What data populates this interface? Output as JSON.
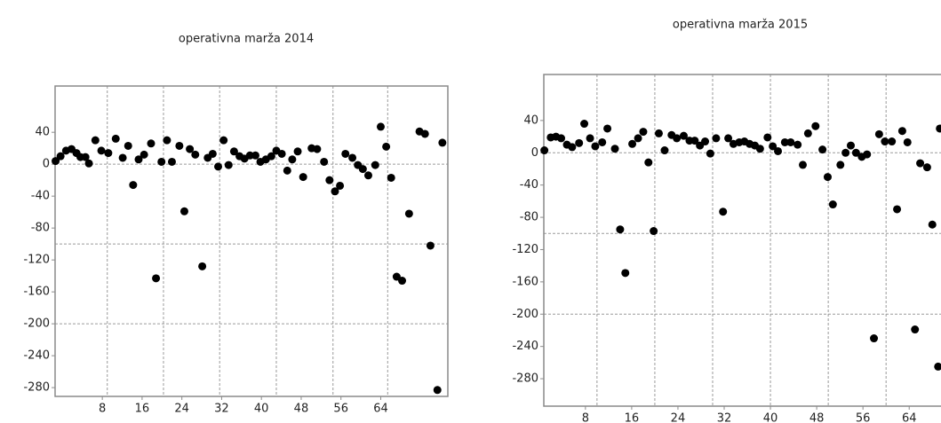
{
  "chart_data": [
    {
      "type": "scatter",
      "title": "operativna marža 2014",
      "color": "#000000",
      "xlim": [
        -1.5,
        77.5
      ],
      "ylim": [
        -291,
        98
      ],
      "xticks": [
        8,
        16,
        24,
        32,
        40,
        48,
        56,
        64
      ],
      "yticks": [
        40,
        0,
        -40,
        -80,
        -120,
        -160,
        -200,
        -240,
        -280
      ],
      "xgrid": [
        9,
        20.3,
        31.6,
        43,
        54.4,
        65.4
      ],
      "ygrid": [
        0,
        -100,
        -200
      ],
      "x": [
        -1.4,
        -0.4,
        0.7,
        1.8,
        2.8,
        3.6,
        4.6,
        5.3,
        6.6,
        7.8,
        9.2,
        10.7,
        12.1,
        13.2,
        14.2,
        15.3,
        16.4,
        17.8,
        18.8,
        19.9,
        21.0,
        22.0,
        23.5,
        24.5,
        25.6,
        26.7,
        28.1,
        29.2,
        30.2,
        31.3,
        32.4,
        33.4,
        34.5,
        35.6,
        36.6,
        37.7,
        38.8,
        39.8,
        40.9,
        42.0,
        43.0,
        44.1,
        45.2,
        46.2,
        47.3,
        48.4,
        50.1,
        51.2,
        52.6,
        53.7,
        54.8,
        55.8,
        56.9,
        58.3,
        59.4,
        60.4,
        61.5,
        62.9,
        64.0,
        65.1,
        66.1,
        67.2,
        68.3,
        69.7,
        71.8,
        72.9,
        74.0,
        75.4,
        76.4
      ],
      "values": [
        4,
        10,
        17,
        19,
        14,
        9,
        9,
        1,
        30,
        17,
        14,
        32,
        8,
        23,
        -26,
        6,
        12,
        26,
        -143,
        3,
        30,
        3,
        23,
        -59,
        19,
        12,
        -128,
        8,
        13,
        -3,
        30,
        -1,
        16,
        10,
        7,
        11,
        11,
        3,
        6,
        10,
        17,
        13,
        -8,
        6,
        16,
        -16,
        20,
        19,
        3,
        -20,
        -34,
        -27,
        13,
        8,
        -1,
        -6,
        -14,
        -1,
        47,
        22,
        -17,
        -141,
        -146,
        -62,
        41,
        38,
        -102,
        -283,
        27
      ]
    },
    {
      "type": "scatter",
      "title": "operativna marža 2015",
      "color": "#000000",
      "xlim": [
        0.8,
        69.5
      ],
      "ylim": [
        -314,
        97
      ],
      "xticks": [
        8,
        16,
        24,
        32,
        40,
        48,
        56,
        64
      ],
      "yticks": [
        40,
        0,
        -40,
        -80,
        -120,
        -160,
        -200,
        -240,
        -280
      ],
      "xgrid": [
        10,
        20,
        30,
        40,
        50,
        60
      ],
      "ygrid": [
        0,
        -100,
        -200
      ],
      "x": [
        0.9,
        2.0,
        2.9,
        3.8,
        4.8,
        5.7,
        6.9,
        7.8,
        8.8,
        9.7,
        10.9,
        11.8,
        13.1,
        14.0,
        14.9,
        16.1,
        17.1,
        18.0,
        18.9,
        19.8,
        20.7,
        21.7,
        22.9,
        23.8,
        25.0,
        26.0,
        26.9,
        27.8,
        28.7,
        29.6,
        30.6,
        31.8,
        32.7,
        33.6,
        34.6,
        35.5,
        36.4,
        37.3,
        38.2,
        39.5,
        40.4,
        41.3,
        42.5,
        43.5,
        44.7,
        45.6,
        46.5,
        47.8,
        49.0,
        49.9,
        50.8,
        52.1,
        53.0,
        53.9,
        54.8,
        55.8,
        56.7,
        57.9,
        58.8,
        59.8,
        61.0,
        61.9,
        62.8,
        63.7,
        65.0,
        65.9,
        67.1,
        68.0,
        69.0,
        69.3
      ],
      "values": [
        3,
        19,
        20,
        18,
        10,
        7,
        12,
        36,
        18,
        8,
        13,
        30,
        5,
        -95,
        -149,
        11,
        18,
        26,
        -12,
        -97,
        24,
        3,
        22,
        18,
        21,
        15,
        15,
        9,
        14,
        -1,
        18,
        -73,
        18,
        11,
        13,
        14,
        11,
        9,
        5,
        19,
        8,
        2,
        13,
        13,
        10,
        -15,
        24,
        33,
        4,
        -30,
        -64,
        -15,
        0,
        9,
        0,
        -5,
        -2,
        -230,
        23,
        14,
        14,
        -70,
        27,
        13,
        -219,
        -13,
        -18,
        -89,
        -265,
        30
      ]
    }
  ]
}
